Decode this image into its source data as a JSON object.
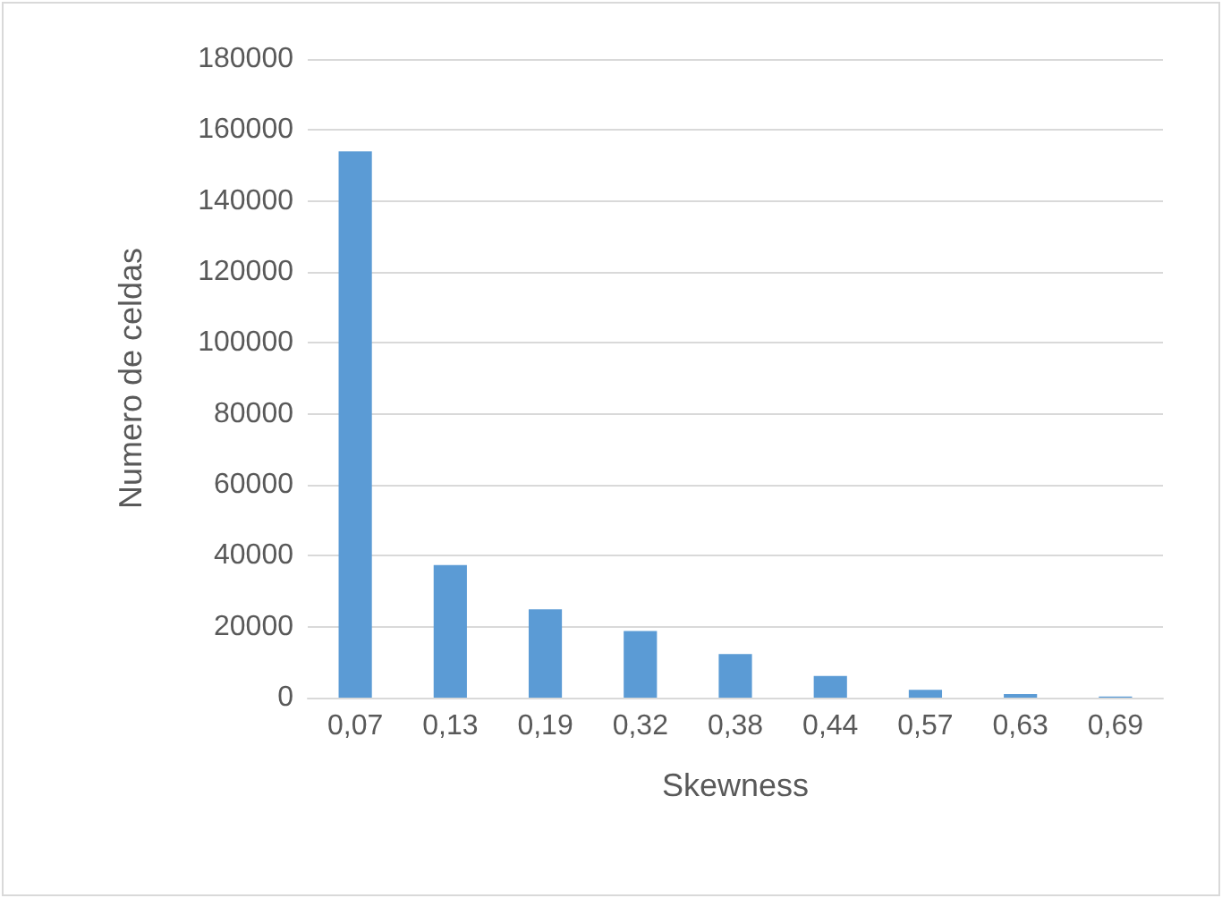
{
  "chart_data": {
    "type": "bar",
    "xlabel": "Skewness",
    "ylabel": "Numero de celdas",
    "categories": [
      "0,07",
      "0,13",
      "0,19",
      "0,32",
      "0,38",
      "0,44",
      "0,57",
      "0,63",
      "0,69"
    ],
    "values": [
      154000,
      37400,
      24900,
      18800,
      12300,
      6100,
      2200,
      1000,
      300
    ],
    "color": "#5b9bd5",
    "ylim": [
      0,
      180000
    ],
    "yticks": [
      0,
      20000,
      40000,
      60000,
      80000,
      100000,
      120000,
      140000,
      160000,
      180000
    ],
    "grid": "y"
  }
}
